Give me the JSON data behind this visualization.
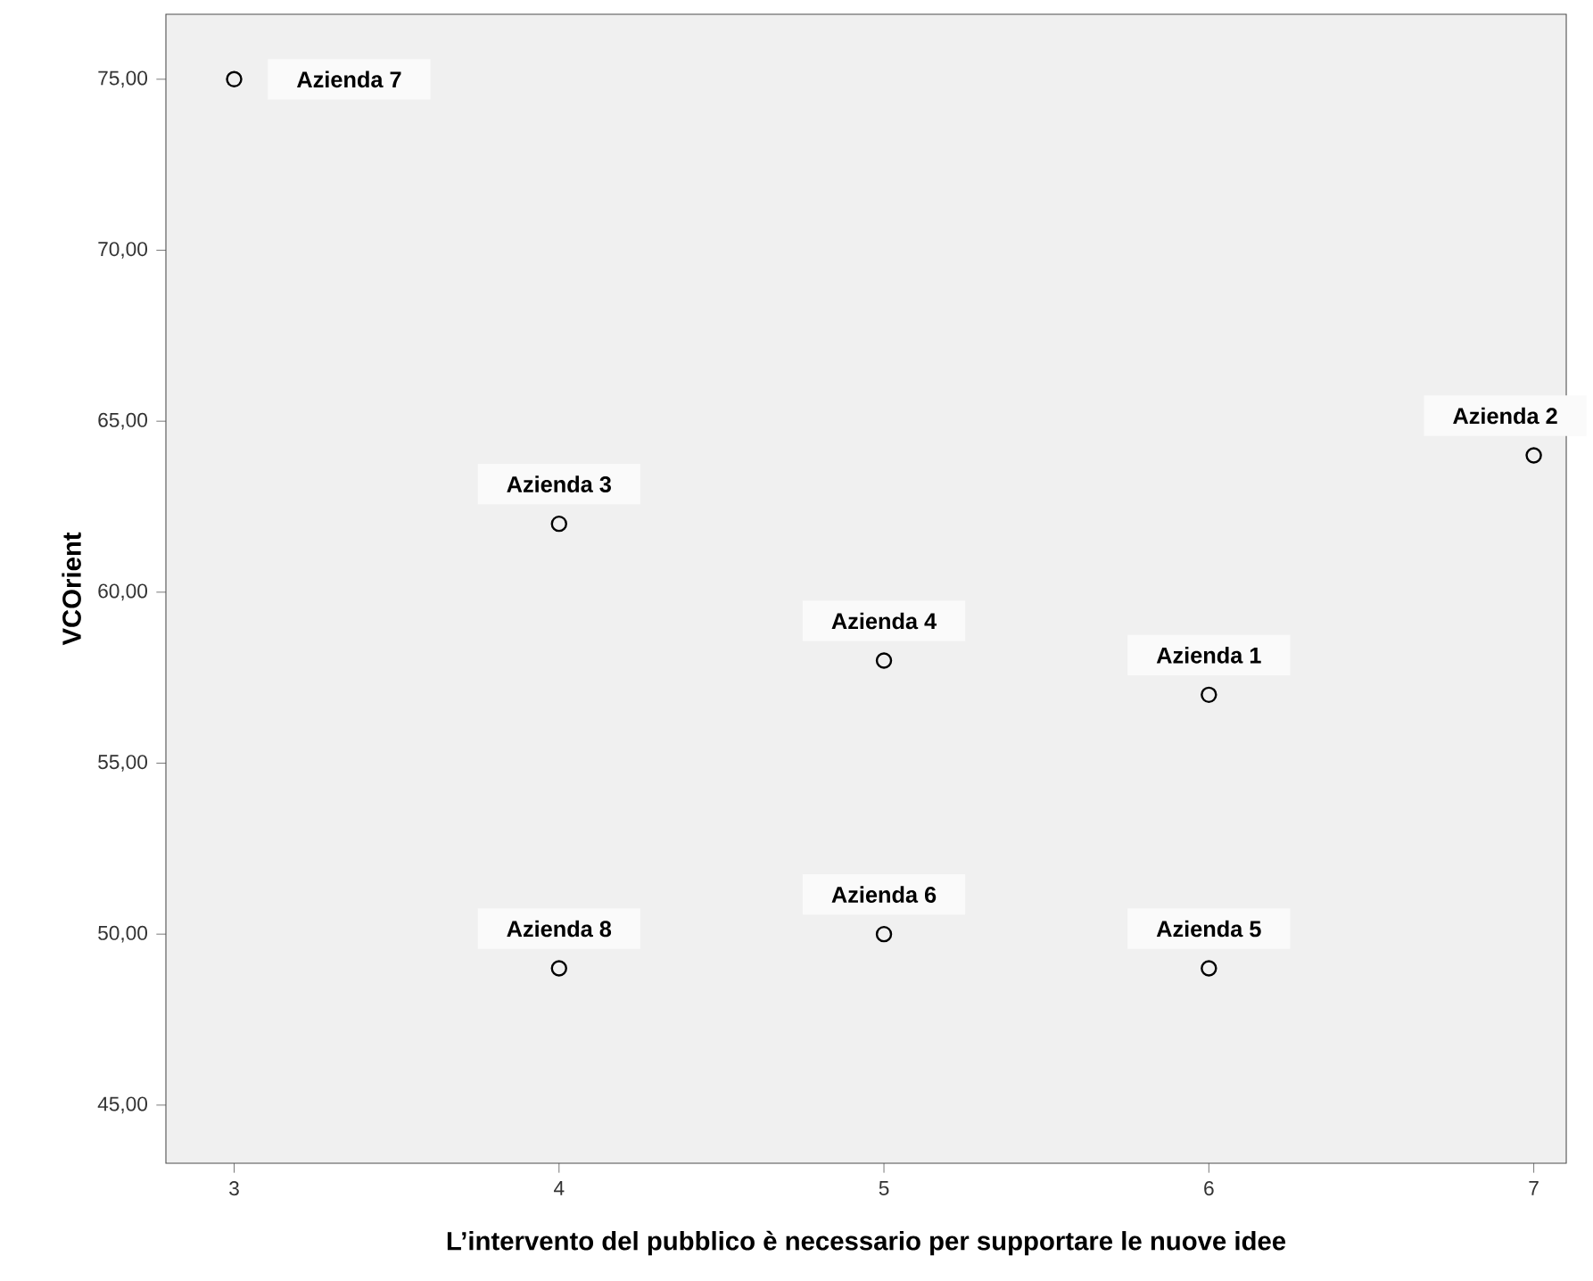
{
  "chart_data": {
    "type": "scatter",
    "xlabel": "L’intervento del pubblico è necessario per supportare le nuove idee",
    "ylabel": "VCOrient",
    "marker": "circle",
    "series": [
      {
        "color": "#000000",
        "x": [
          6,
          7,
          4,
          5,
          6,
          5,
          3,
          4
        ],
        "values": [
          57,
          64,
          62,
          58,
          49,
          50,
          75,
          49
        ]
      }
    ],
    "xlim": [
      2.79,
      7.1
    ],
    "ylim": [
      43.3,
      76.9
    ],
    "xticks": [
      3,
      4,
      5,
      6,
      7
    ],
    "yticks": [
      {
        "value": 45,
        "label": "45,00"
      },
      {
        "value": 50,
        "label": "50,00"
      },
      {
        "value": 55,
        "label": "55,00"
      },
      {
        "value": 60,
        "label": "60,00"
      },
      {
        "value": 65,
        "label": "65,00"
      },
      {
        "value": 70,
        "label": "70,00"
      },
      {
        "value": 75,
        "label": "75,00"
      }
    ],
    "annotations": [
      {
        "text": "Azienda 1",
        "x": 6,
        "y": 57
      },
      {
        "text": "Azienda 2",
        "x": 7,
        "y": 64
      },
      {
        "text": "Azienda 3",
        "x": 4,
        "y": 62
      },
      {
        "text": "Azienda 4",
        "x": 5,
        "y": 58
      },
      {
        "text": "Azienda 5",
        "x": 6,
        "y": 49
      },
      {
        "text": "Azienda 6",
        "x": 5,
        "y": 50
      },
      {
        "text": "Azienda 7",
        "x": 3,
        "y": 75
      },
      {
        "text": "Azienda 8",
        "x": 4,
        "y": 49
      }
    ]
  }
}
